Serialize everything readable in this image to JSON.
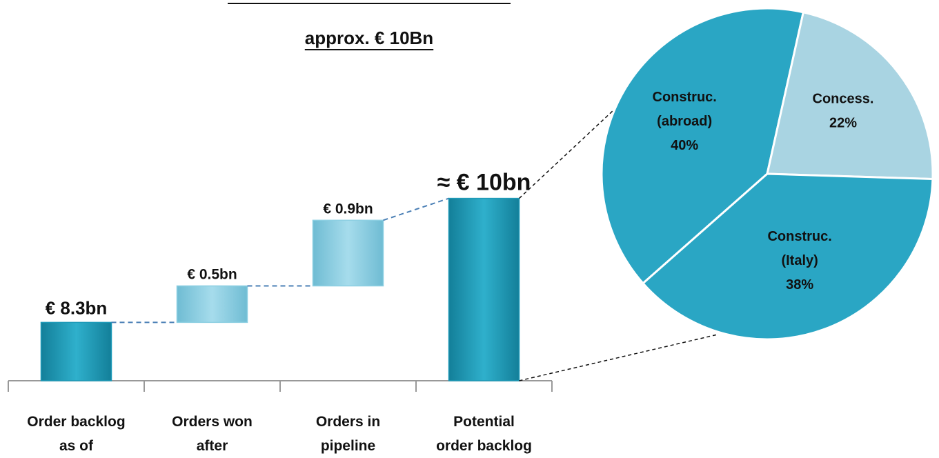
{
  "chart_data": [
    {
      "type": "waterfall",
      "title": "approx. € 10Bn",
      "categories": [
        [
          "Order backlog",
          "as of"
        ],
        [
          "Orders won",
          "after"
        ],
        [
          "Orders in",
          "pipeline"
        ],
        [
          "Potential",
          "order backlog"
        ]
      ],
      "values": [
        8.3,
        0.5,
        0.9,
        10
      ],
      "value_labels": [
        "€ 8.3bn",
        "€ 0.5bn",
        "€ 0.9bn",
        "≈ € 10bn"
      ],
      "bar_kinds": [
        "base",
        "delta",
        "delta",
        "total"
      ],
      "colors": {
        "base": "#1e9ab8",
        "delta": "#8ccfe2",
        "total": "#1e9ab8"
      },
      "ylim": [
        7.5,
        10.1
      ]
    },
    {
      "type": "pie",
      "labels": [
        [
          "Construc.",
          "(abroad)"
        ],
        [
          "Concess."
        ],
        [
          "Construc.",
          "(Italy)"
        ]
      ],
      "values": [
        40,
        22,
        38
      ],
      "value_labels": [
        "40%",
        "22%",
        "38%"
      ],
      "colors": [
        "#2aa6c4",
        "#a9d4e2",
        "#2aa6c4"
      ]
    }
  ]
}
